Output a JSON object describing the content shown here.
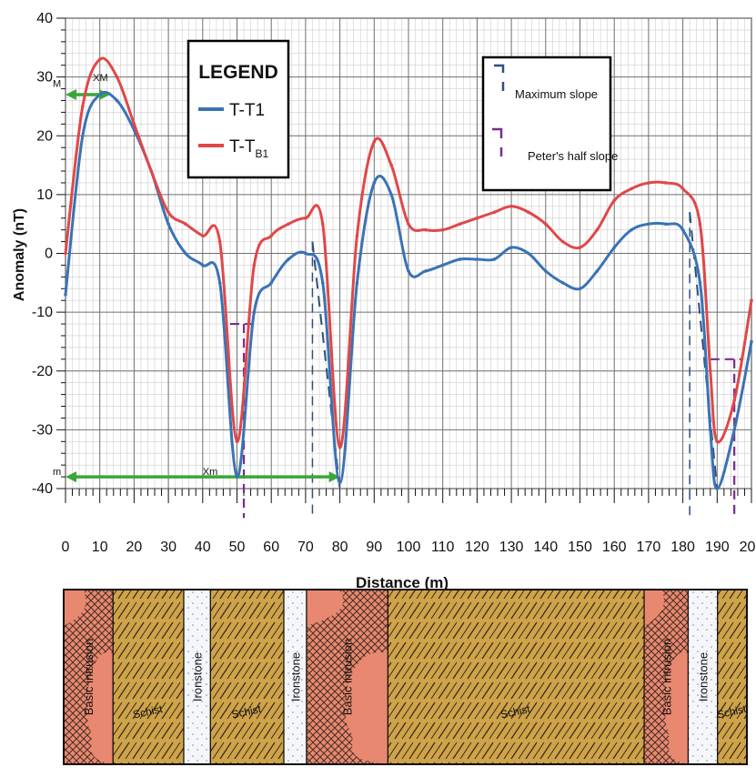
{
  "chart_data": {
    "type": "line",
    "xlabel": "Distance (m)",
    "ylabel": "Anomaly (nT)",
    "xlim": [
      0,
      200
    ],
    "ylim": [
      -40,
      40
    ],
    "x_ticks": [
      0,
      10,
      20,
      30,
      40,
      50,
      60,
      70,
      80,
      90,
      100,
      110,
      120,
      130,
      140,
      150,
      160,
      170,
      180,
      190,
      200
    ],
    "y_ticks": [
      40,
      30,
      20,
      10,
      0,
      -10,
      -20,
      -30,
      -40
    ],
    "grid": true,
    "legend": {
      "title": "LEGEND",
      "placement": "top-left",
      "entries": [
        {
          "label": "T-T1",
          "color": "#3a73b5"
        },
        {
          "label": "T-T",
          "subscript": "B1",
          "color": "#e04848"
        }
      ]
    },
    "series": [
      {
        "name": "T-T1",
        "color": "#3a73b5",
        "x": [
          0,
          5,
          10,
          15,
          20,
          25,
          30,
          35,
          40,
          45,
          50,
          55,
          60,
          65,
          70,
          75,
          80,
          85,
          90,
          95,
          100,
          105,
          110,
          115,
          120,
          125,
          130,
          135,
          140,
          145,
          150,
          155,
          160,
          165,
          170,
          175,
          180,
          185,
          188,
          190,
          195,
          200
        ],
        "values": [
          -7,
          20,
          27,
          26,
          21,
          14,
          5,
          0,
          -2,
          -5,
          -38,
          -10,
          -5,
          -1,
          0,
          -5,
          -39,
          -5,
          12,
          10,
          -3,
          -3,
          -2,
          -1,
          -1,
          -1,
          1,
          0,
          -3,
          -5,
          -6,
          -3,
          1,
          4,
          5,
          5,
          4,
          -5,
          -30,
          -40,
          -30,
          -15
        ]
      },
      {
        "name": "T-TB1",
        "color": "#e04848",
        "x": [
          0,
          5,
          10,
          15,
          20,
          25,
          30,
          35,
          40,
          45,
          50,
          55,
          60,
          65,
          70,
          75,
          80,
          85,
          90,
          95,
          100,
          105,
          110,
          115,
          120,
          125,
          130,
          135,
          140,
          145,
          150,
          155,
          160,
          165,
          170,
          175,
          180,
          185,
          188,
          190,
          195,
          200
        ],
        "values": [
          0,
          25,
          33,
          30,
          22,
          14,
          7,
          5,
          3,
          2,
          -32,
          -2,
          3,
          5,
          6,
          5,
          -33,
          3,
          19,
          15,
          5,
          4,
          4,
          5,
          6,
          7,
          8,
          7,
          5,
          2,
          1,
          4,
          9,
          11,
          12,
          12,
          11,
          5,
          -20,
          -32,
          -25,
          -8
        ]
      }
    ],
    "annotation_box": {
      "entries": [
        {
          "label": "Maximum slope",
          "color": "#2f4f7c"
        },
        {
          "label": "Peter's half slope",
          "color": "#7a2c8c"
        }
      ]
    },
    "annotations": [
      {
        "text": "M",
        "x": 0,
        "y": 28
      },
      {
        "text": "XM",
        "x": 8,
        "y": 29
      },
      {
        "text": "m",
        "x": 0,
        "y": -38
      },
      {
        "text": "Xm",
        "x": 40,
        "y": -38
      }
    ],
    "xm_arrow_lower": {
      "x_from": 0,
      "x_to": 80,
      "y": -38
    },
    "xm_arrow_upper": {
      "x_from": 0,
      "x_to": 13,
      "y": 27
    },
    "slope_markers": {
      "max_slope": [
        {
          "x_from": 72,
          "x_to": 80,
          "y_from": 2,
          "y_to": -40
        },
        {
          "x_from": 182,
          "x_to": 190,
          "y_from": 7,
          "y_to": -40
        }
      ],
      "peter_half": [
        {
          "x1": 48,
          "x2": 52,
          "y": -12
        },
        {
          "x1": 188,
          "x2": 195,
          "y": -18
        }
      ]
    }
  },
  "geology": {
    "units": [
      {
        "rock": "basic",
        "label": "Basic intrusion",
        "from": 0,
        "to": 37
      },
      {
        "rock": "schist",
        "label": "Schist",
        "from": 37,
        "to": 90
      },
      {
        "rock": "ironstone",
        "label": "Ironstone",
        "from": 90,
        "to": 110
      },
      {
        "rock": "schist",
        "label": "Schist",
        "from": 110,
        "to": 165
      },
      {
        "rock": "ironstone",
        "label": "Ironstone",
        "from": 165,
        "to": 182
      },
      {
        "rock": "basic",
        "label": "Basic intrusion",
        "from": 182,
        "to": 243
      },
      {
        "rock": "schist",
        "label": "Schist",
        "from": 243,
        "to": 435
      },
      {
        "rock": "basic",
        "label": "Basic intrusion",
        "from": 435,
        "to": 468
      },
      {
        "rock": "ironstone",
        "label": "Ironstone",
        "from": 468,
        "to": 490
      },
      {
        "rock": "schist",
        "label": "Schist",
        "from": 490,
        "to": 512
      }
    ],
    "colors": {
      "basic": "#e98870",
      "schist": "#cfa348",
      "ironstone": "#f4f6fa"
    }
  }
}
